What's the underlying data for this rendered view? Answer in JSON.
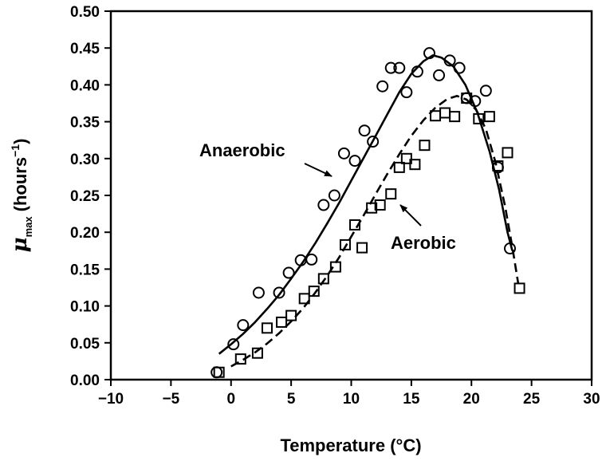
{
  "chart_data": {
    "type": "scatter",
    "title": "",
    "xlabel": "Temperature (°C)",
    "ylabel": {
      "mu": "μ",
      "sub": "max",
      "unit": "(hours",
      "exp": "−1",
      "close": ")"
    },
    "xlim": [
      -10,
      30
    ],
    "ylim": [
      0,
      0.5
    ],
    "x_ticks": [
      -10,
      -5,
      0,
      5,
      10,
      15,
      20,
      25,
      30
    ],
    "x_tick_labels": [
      "−10",
      "−5",
      "0",
      "5",
      "10",
      "15",
      "20",
      "25",
      "30"
    ],
    "y_ticks": [
      0,
      0.05,
      0.1,
      0.15,
      0.2,
      0.25,
      0.3,
      0.35,
      0.4,
      0.45,
      0.5
    ],
    "y_tick_labels": [
      "0.00",
      "0.05",
      "0.10",
      "0.15",
      "0.20",
      "0.25",
      "0.30",
      "0.35",
      "0.40",
      "0.45",
      "0.50"
    ],
    "grid": false,
    "legend": "none",
    "series": [
      {
        "name": "Anaerobic",
        "marker": "circle",
        "line": "solid",
        "points": [
          [
            -1.2,
            0.01
          ],
          [
            0.2,
            0.048
          ],
          [
            1.0,
            0.074
          ],
          [
            2.3,
            0.118
          ],
          [
            4.0,
            0.118
          ],
          [
            4.8,
            0.145
          ],
          [
            5.8,
            0.162
          ],
          [
            6.7,
            0.163
          ],
          [
            7.7,
            0.237
          ],
          [
            8.6,
            0.25
          ],
          [
            9.4,
            0.307
          ],
          [
            10.3,
            0.297
          ],
          [
            11.1,
            0.338
          ],
          [
            11.8,
            0.323
          ],
          [
            12.6,
            0.398
          ],
          [
            13.3,
            0.423
          ],
          [
            14.0,
            0.423
          ],
          [
            14.6,
            0.39
          ],
          [
            15.5,
            0.418
          ],
          [
            16.5,
            0.443
          ],
          [
            17.3,
            0.413
          ],
          [
            18.2,
            0.433
          ],
          [
            19.0,
            0.423
          ],
          [
            19.6,
            0.382
          ],
          [
            20.3,
            0.378
          ],
          [
            21.2,
            0.392
          ],
          [
            22.2,
            0.288
          ],
          [
            23.2,
            0.178
          ]
        ],
        "curve": [
          [
            -1.0,
            0.035
          ],
          [
            0.0,
            0.048
          ],
          [
            1.0,
            0.062
          ],
          [
            2.0,
            0.078
          ],
          [
            3.0,
            0.096
          ],
          [
            4.0,
            0.115
          ],
          [
            5.0,
            0.137
          ],
          [
            6.0,
            0.16
          ],
          [
            7.0,
            0.185
          ],
          [
            8.0,
            0.212
          ],
          [
            9.0,
            0.24
          ],
          [
            10.0,
            0.27
          ],
          [
            11.0,
            0.3
          ],
          [
            12.0,
            0.33
          ],
          [
            13.0,
            0.36
          ],
          [
            14.0,
            0.39
          ],
          [
            15.0,
            0.415
          ],
          [
            16.0,
            0.432
          ],
          [
            16.8,
            0.44
          ],
          [
            17.5,
            0.437
          ],
          [
            18.5,
            0.425
          ],
          [
            19.5,
            0.4
          ],
          [
            20.5,
            0.362
          ],
          [
            21.5,
            0.31
          ],
          [
            22.3,
            0.258
          ],
          [
            23.0,
            0.2
          ],
          [
            23.4,
            0.175
          ]
        ]
      },
      {
        "name": "Aerobic",
        "marker": "square",
        "line": "dashed",
        "points": [
          [
            -1.0,
            0.01
          ],
          [
            0.8,
            0.028
          ],
          [
            2.2,
            0.036
          ],
          [
            3.0,
            0.07
          ],
          [
            4.2,
            0.078
          ],
          [
            5.0,
            0.087
          ],
          [
            6.1,
            0.11
          ],
          [
            6.9,
            0.12
          ],
          [
            7.7,
            0.137
          ],
          [
            8.7,
            0.153
          ],
          [
            9.5,
            0.183
          ],
          [
            10.3,
            0.21
          ],
          [
            10.9,
            0.179
          ],
          [
            11.7,
            0.233
          ],
          [
            12.4,
            0.237
          ],
          [
            13.3,
            0.252
          ],
          [
            14.0,
            0.288
          ],
          [
            14.6,
            0.3
          ],
          [
            15.3,
            0.292
          ],
          [
            16.1,
            0.318
          ],
          [
            17.0,
            0.358
          ],
          [
            17.8,
            0.362
          ],
          [
            18.6,
            0.357
          ],
          [
            19.6,
            0.382
          ],
          [
            20.6,
            0.354
          ],
          [
            21.5,
            0.357
          ],
          [
            22.2,
            0.29
          ],
          [
            23.0,
            0.308
          ],
          [
            24.0,
            0.124
          ]
        ],
        "curve": [
          [
            0.0,
            0.018
          ],
          [
            1.0,
            0.027
          ],
          [
            2.0,
            0.037
          ],
          [
            3.0,
            0.049
          ],
          [
            4.0,
            0.063
          ],
          [
            5.0,
            0.079
          ],
          [
            6.0,
            0.097
          ],
          [
            7.0,
            0.118
          ],
          [
            8.0,
            0.141
          ],
          [
            9.0,
            0.166
          ],
          [
            10.0,
            0.194
          ],
          [
            11.0,
            0.222
          ],
          [
            12.0,
            0.251
          ],
          [
            13.0,
            0.279
          ],
          [
            14.0,
            0.306
          ],
          [
            15.0,
            0.331
          ],
          [
            16.0,
            0.352
          ],
          [
            17.0,
            0.369
          ],
          [
            18.0,
            0.381
          ],
          [
            18.8,
            0.385
          ],
          [
            19.6,
            0.38
          ],
          [
            20.4,
            0.366
          ],
          [
            21.2,
            0.34
          ],
          [
            22.0,
            0.295
          ],
          [
            22.8,
            0.235
          ],
          [
            23.4,
            0.18
          ],
          [
            23.9,
            0.13
          ]
        ]
      }
    ],
    "annotations": [
      {
        "text": "Anaerobic",
        "series": "Anaerobic",
        "arrow_to": [
          8.6,
          0.277
        ]
      },
      {
        "text": "Aerobic",
        "series": "Aerobic",
        "arrow_to": [
          13.6,
          0.233
        ]
      }
    ]
  }
}
